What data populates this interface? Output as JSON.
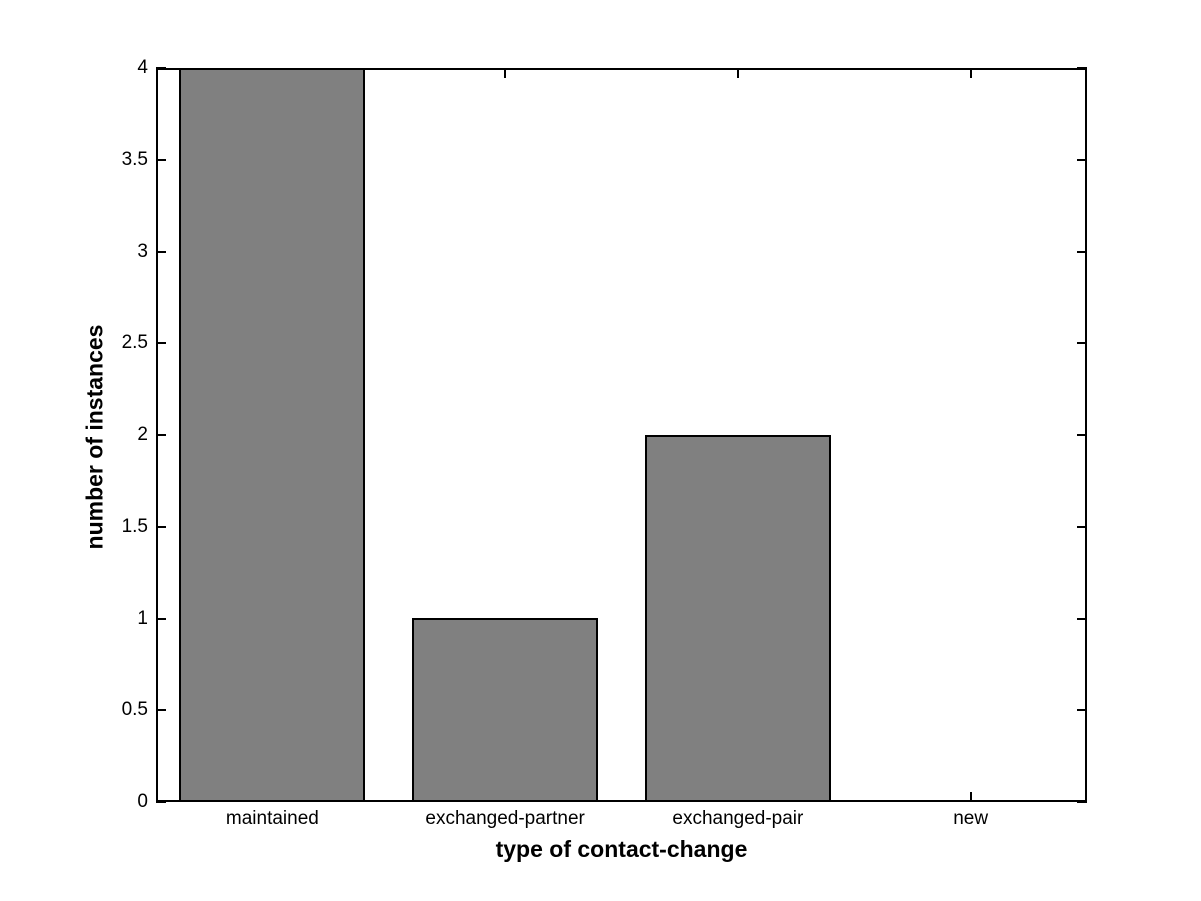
{
  "chart_data": {
    "type": "bar",
    "title": "",
    "categories": [
      "maintained",
      "exchanged-partner",
      "exchanged-pair",
      "new"
    ],
    "values": [
      4,
      1,
      2,
      0
    ],
    "xlabel": "type of contact-change",
    "ylabel": "number of instances",
    "ylim": [
      0,
      4
    ],
    "yticks": [
      0,
      0.5,
      1,
      1.5,
      2,
      2.5,
      3,
      3.5,
      4
    ],
    "ytick_labels": [
      "0",
      "0.5",
      "1",
      "1.5",
      "2",
      "2.5",
      "3",
      "3.5",
      "4"
    ],
    "bar_relative_width": 0.8,
    "grid": false,
    "legend": "none",
    "box": true,
    "tick_direction": "in",
    "colors": {
      "bar_fill": "#808080",
      "bar_edge": "#000000",
      "axis": "#000000",
      "text": "#000000",
      "background": "#ffffff"
    }
  }
}
